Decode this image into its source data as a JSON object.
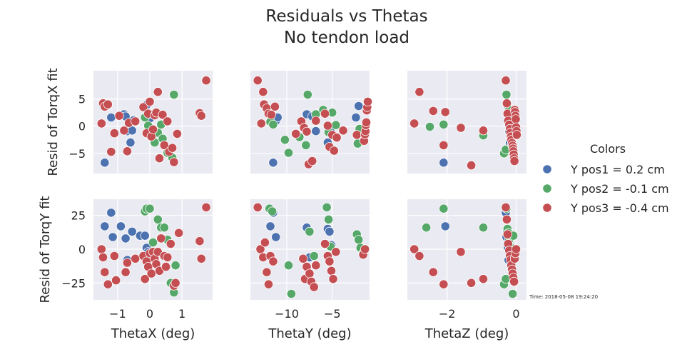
{
  "title_line1": "Residuals vs Thetas",
  "title_line2": "No tendon load",
  "timestamp": "Time: 2018-05-08 19:24:20",
  "legend": {
    "title": "Colors",
    "entries": [
      {
        "label": "Y pos1 = 0.2 cm",
        "color": "#4c72b0"
      },
      {
        "label": "Y pos2 = -0.1 cm",
        "color": "#55a868"
      },
      {
        "label": "Y pos3 = -0.4 cm",
        "color": "#c44e52"
      }
    ]
  },
  "chart_data": {
    "type": "scatter",
    "layout": "grid 2 rows x 3 columns",
    "col_xlabels": [
      "ThetaX (deg)",
      "ThetaY (deg)",
      "ThetaZ (deg)"
    ],
    "row_ylabels": [
      "Resid of TorqX fit",
      "Resid of TorqY fit"
    ],
    "col_xlim": [
      [
        -1.75,
        1.95
      ],
      [
        -14.0,
        -0.9
      ],
      [
        -3.15,
        0.3
      ]
    ],
    "col_xticks": [
      [
        -1,
        0,
        1
      ],
      [
        -10,
        -5
      ],
      [
        -2,
        0
      ]
    ],
    "col_xtick_labels": [
      [
        "−1",
        "0",
        "1"
      ],
      [
        "−10",
        "−5"
      ],
      [
        "−2",
        "0"
      ]
    ],
    "row_ylim": [
      [
        -8.7,
        10.2
      ],
      [
        -37.5,
        37.0
      ]
    ],
    "row_yticks": [
      [
        -5,
        0,
        5
      ],
      [
        -25,
        0,
        25
      ]
    ],
    "row_ytick_labels": [
      [
        "−5",
        "0",
        "5"
      ],
      [
        "−25",
        "0",
        "25"
      ]
    ],
    "grid": true,
    "legend_placement": "right",
    "panels": [
      {
        "row": 0,
        "col": 0,
        "series": [
          {
            "name": "Y pos1 = 0.2 cm",
            "x": [
              -1.4,
              -1.2,
              -0.8,
              -0.75,
              -0.7,
              -0.6,
              -0.55,
              -0.5,
              -0.1,
              0.0,
              0.05,
              0.1
            ],
            "y": [
              -6.7,
              1.6,
              2.2,
              1.8,
              -0.9,
              -3.0,
              -0.8,
              1.1,
              3.9,
              1.4,
              -1.7,
              -0.5
            ]
          },
          {
            "name": "Y pos2 = -0.1 cm",
            "x": [
              -0.15,
              -0.05,
              0.1,
              0.15,
              0.25,
              0.35,
              0.4,
              0.55,
              0.7,
              0.75
            ],
            "y": [
              1.6,
              0.1,
              2.2,
              -3.0,
              -1.2,
              0.3,
              -2.3,
              -4.9,
              -5.8,
              5.8
            ]
          },
          {
            "name": "Y pos3 = -0.4 cm",
            "x": [
              -1.5,
              -1.45,
              -1.4,
              -1.3,
              -1.2,
              -1.1,
              -0.95,
              -0.8,
              -0.7,
              -0.65,
              -0.45,
              -0.2,
              -0.1,
              -0.05,
              0.0,
              0.05,
              0.1,
              0.15,
              0.2,
              0.25,
              0.3,
              0.4,
              0.45,
              0.55,
              0.6,
              0.7,
              0.75,
              0.85,
              1.55,
              1.6,
              1.75
            ],
            "y": [
              0.5,
              4.2,
              3.6,
              4.0,
              -4.7,
              -1.3,
              1.9,
              -0.8,
              -4.6,
              0.6,
              0.9,
              3.5,
              -1.3,
              2.3,
              4.5,
              -1.9,
              -0.6,
              2.0,
              2.5,
              6.3,
              -5.9,
              2.1,
              -3.5,
              0.9,
              -4.7,
              -4.0,
              -6.6,
              -1.4,
              2.4,
              1.9,
              8.4
            ]
          }
        ]
      },
      {
        "row": 0,
        "col": 1,
        "series": [
          {
            "name": "Y pos1 = 0.2 cm",
            "x": [
              -11.5,
              -11.2,
              -11.0,
              -7.8,
              -7.2,
              -6.8,
              -5.5,
              -5.2,
              -2.4,
              -2.1
            ],
            "y": [
              -6.7,
              1.0,
              1.6,
              2.2,
              1.8,
              -0.9,
              -3.0,
              -0.8,
              1.6,
              3.7
            ]
          },
          {
            "name": "Y pos2 = -0.1 cm",
            "x": [
              -11.8,
              -11.5,
              -10.2,
              -9.8,
              -8.6,
              -7.9,
              -7.7,
              -6.8,
              -6.0,
              -5.4,
              -5.0,
              -4.6,
              -2.2,
              -2.0
            ],
            "y": [
              0.8,
              0.3,
              -2.5,
              -4.9,
              -2.0,
              -3.5,
              5.8,
              2.2,
              3.0,
              -1.1,
              2.5,
              0.2,
              -3.2,
              -0.5
            ]
          },
          {
            "name": "Y pos3 = -0.4 cm",
            "x": [
              -13.2,
              -12.8,
              -12.6,
              -12.5,
              -12.2,
              -12.0,
              -11.7,
              -11.3,
              -9.0,
              -8.4,
              -8.1,
              -7.8,
              -7.6,
              -7.2,
              -6.8,
              -5.8,
              -5.5,
              -5.3,
              -5.0,
              -4.8,
              -4.5,
              -3.8,
              -2.3,
              -1.5,
              -1.4,
              -1.35,
              -1.3,
              -1.25,
              -1.2,
              -1.15,
              -1.1
            ],
            "y": [
              8.4,
              0.5,
              6.3,
              4.0,
              3.3,
              2.3,
              2.1,
              3.6,
              -1.4,
              0.9,
              -0.3,
              -1.0,
              -7.0,
              -6.4,
              1.0,
              2.3,
              0.1,
              -3.8,
              -1.6,
              -4.5,
              -2.1,
              -0.8,
              -1.6,
              -2.7,
              -1.5,
              -0.9,
              0.2,
              0.7,
              2.9,
              3.5,
              4.5
            ]
          }
        ]
      },
      {
        "row": 0,
        "col": 2,
        "series": [
          {
            "name": "Y pos1 = 0.2 cm",
            "x": [
              -2.1,
              -0.25,
              -0.22,
              -0.2,
              -0.18,
              -0.15,
              -0.1,
              -0.05
            ],
            "y": [
              -6.7,
              3.8,
              0.5,
              -1.0,
              -3.0,
              1.8,
              2.1,
              -0.8
            ]
          },
          {
            "name": "Y pos2 = -0.1 cm",
            "x": [
              -2.5,
              -2.1,
              -0.95,
              -0.35,
              -0.3,
              -0.28,
              -0.25,
              -0.22,
              -0.2,
              -0.18,
              -0.15,
              -0.12
            ],
            "y": [
              -0.1,
              0.3,
              -1.7,
              -5.0,
              -4.3,
              5.8,
              4.2,
              2.5,
              3.0,
              1.6,
              -2.0,
              -3.5
            ]
          },
          {
            "name": "Y pos3 = -0.4 cm",
            "x": [
              -2.95,
              -2.8,
              -2.4,
              -2.1,
              -2.05,
              -1.6,
              -1.3,
              -0.95,
              -0.3,
              -0.27,
              -0.25,
              -0.23,
              -0.2,
              -0.18,
              -0.17,
              -0.15,
              -0.14,
              -0.12,
              -0.1,
              -0.09,
              -0.08,
              -0.07,
              -0.06,
              -0.05,
              -0.04,
              -0.03,
              -0.02,
              -0.01,
              0.0,
              0.01,
              0.02
            ],
            "y": [
              0.5,
              6.3,
              2.8,
              -3.5,
              2.6,
              -0.3,
              -7.2,
              -0.8,
              8.4,
              4.2,
              2.3,
              1.0,
              0.3,
              -0.5,
              -1.2,
              -1.9,
              -2.5,
              -3.1,
              -3.6,
              -4.1,
              -4.6,
              -5.2,
              -5.9,
              -6.4,
              3.0,
              2.6,
              1.9,
              1.3,
              -0.2,
              -0.9,
              -1.6
            ]
          }
        ]
      },
      {
        "row": 1,
        "col": 0,
        "series": [
          {
            "name": "Y pos1 = 0.2 cm",
            "x": [
              -1.4,
              -1.2,
              -1.15,
              -0.9,
              -0.75,
              -0.7,
              -0.55,
              -0.3,
              -0.15,
              -0.1,
              -0.05
            ],
            "y": [
              17.0,
              27.0,
              9.0,
              17.0,
              8.0,
              -8.0,
              13.0,
              10.0,
              10.0,
              1.0,
              -2.0
            ]
          },
          {
            "name": "Y pos2 = -0.1 cm",
            "x": [
              -0.15,
              -0.1,
              0.0,
              0.1,
              0.25,
              0.35,
              0.45,
              0.55,
              0.65,
              0.75,
              0.8
            ],
            "y": [
              28.0,
              30.0,
              30.0,
              5.0,
              22.0,
              16.0,
              16.0,
              7.0,
              -25.0,
              -32.0,
              -12.0
            ]
          },
          {
            "name": "Y pos3 = -0.4 cm",
            "x": [
              -1.5,
              -1.45,
              -1.4,
              -1.3,
              -1.1,
              -1.05,
              -0.75,
              -0.7,
              -0.45,
              -0.2,
              -0.15,
              -0.1,
              -0.05,
              0.0,
              0.05,
              0.1,
              0.15,
              0.2,
              0.25,
              0.3,
              0.35,
              0.45,
              0.5,
              0.55,
              0.65,
              0.75,
              0.8,
              0.9,
              1.55,
              1.6,
              1.75
            ],
            "y": [
              0.0,
              -6.0,
              -17.0,
              -26.0,
              -5.0,
              -23.0,
              -17.0,
              -10.0,
              -7.0,
              -5.0,
              -22.0,
              -9.0,
              -13.0,
              -3.0,
              -18.0,
              -2.0,
              -7.0,
              -11.0,
              -2.0,
              -16.0,
              8.0,
              -5.0,
              -13.0,
              -6.0,
              4.0,
              -27.0,
              -25.0,
              12.0,
              6.0,
              -7.0,
              31.0
            ]
          }
        ]
      },
      {
        "row": 1,
        "col": 1,
        "series": [
          {
            "name": "Y pos1 = 0.2 cm",
            "x": [
              -11.8,
              -11.5,
              -11.2,
              -7.8,
              -7.5,
              -5.5,
              -5.3,
              -5.1
            ],
            "y": [
              17.0,
              27.0,
              9.0,
              16.0,
              -6.0,
              15.0,
              13.0,
              3.0
            ]
          },
          {
            "name": "Y pos2 = -0.1 cm",
            "x": [
              -11.9,
              -11.6,
              -9.8,
              -9.5,
              -7.5,
              -7.0,
              -5.6,
              -5.4,
              -5.2,
              -2.3,
              -2.1,
              -1.9,
              -1.6
            ],
            "y": [
              30.0,
              28.0,
              -12.0,
              -33.0,
              13.0,
              -5.0,
              31.0,
              22.0,
              2.0,
              11.0,
              7.0,
              1.0,
              -3.0
            ]
          },
          {
            "name": "Y pos3 = -0.4 cm",
            "x": [
              -13.2,
              -12.9,
              -12.6,
              -12.4,
              -12.2,
              -12.0,
              -11.8,
              -11.5,
              -8.2,
              -8.0,
              -7.8,
              -7.5,
              -7.3,
              -7.0,
              -6.8,
              -5.8,
              -5.5,
              -5.3,
              -5.1,
              -4.9,
              -4.6,
              -1.6,
              -1.4
            ],
            "y": [
              31.0,
              0.0,
              -6.0,
              5.0,
              -17.0,
              -26.0,
              -5.0,
              -9.0,
              -7.0,
              -22.0,
              -13.0,
              -18.0,
              -24.0,
              -28.0,
              -12.0,
              4.0,
              -5.0,
              -9.0,
              -16.0,
              -22.0,
              -2.0,
              -4.0,
              0.0
            ]
          }
        ]
      },
      {
        "row": 1,
        "col": 2,
        "series": [
          {
            "name": "Y pos1 = 0.2 cm",
            "x": [
              -2.05,
              -0.3,
              -0.28,
              -0.26,
              -0.24,
              -0.22,
              -0.2
            ],
            "y": [
              17.0,
              27.0,
              9.0,
              13.0,
              1.0,
              -8.0,
              5.0
            ]
          },
          {
            "name": "Y pos2 = -0.1 cm",
            "x": [
              -2.6,
              -2.1,
              -0.95,
              -0.35,
              -0.3,
              -0.28,
              -0.25,
              -0.22,
              -0.2,
              -0.18,
              -0.15,
              -0.12,
              -0.1,
              -0.08
            ],
            "y": [
              16.0,
              30.0,
              16.0,
              -26.0,
              -22.0,
              30.0,
              15.0,
              12.0,
              7.0,
              2.0,
              -3.0,
              -12.0,
              -33.0,
              10.0
            ]
          },
          {
            "name": "Y pos3 = -0.4 cm",
            "x": [
              -2.95,
              -2.8,
              -2.4,
              -2.1,
              -1.6,
              -1.3,
              -0.95,
              -0.3,
              -0.27,
              -0.25,
              -0.23,
              -0.2,
              -0.18,
              -0.16,
              -0.14,
              -0.12,
              -0.1,
              -0.08,
              -0.06,
              -0.04,
              -0.02,
              0.0
            ],
            "y": [
              0.0,
              -5.0,
              -17.0,
              -26.0,
              -2.0,
              -25.0,
              -22.0,
              31.0,
              22.0,
              11.0,
              4.0,
              -1.0,
              -5.0,
              -8.0,
              -12.0,
              -15.0,
              -18.0,
              -21.0,
              -24.0,
              -7.0,
              -3.0,
              0.0
            ]
          }
        ]
      }
    ]
  }
}
